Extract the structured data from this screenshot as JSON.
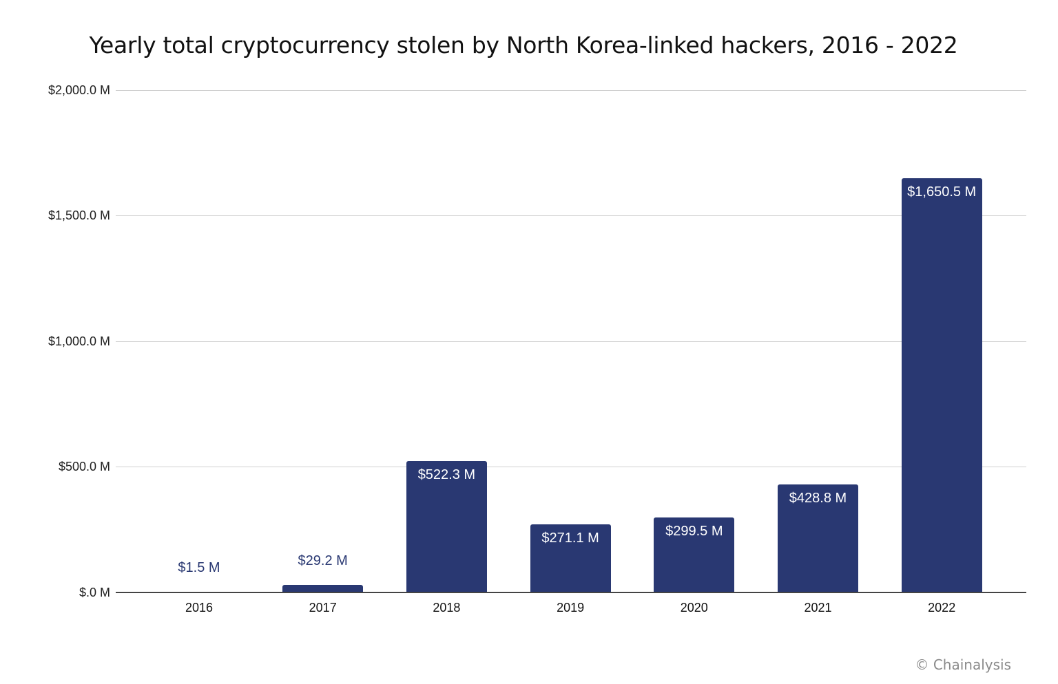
{
  "title": "Yearly total cryptocurrency stolen by North Korea-linked hackers, 2016 - 2022",
  "credit": "© Chainalysis",
  "colors": {
    "bar": "#293872",
    "grid": "#cfcfcf",
    "axis": "#444444"
  },
  "y_ticks": [
    "$2,000.0 M",
    "$1,500.0 M",
    "$1,000.0 M",
    "$500.0 M",
    "$.0 M"
  ],
  "bars": [
    {
      "year": "2016",
      "label": "$1.5 M"
    },
    {
      "year": "2017",
      "label": "$29.2 M"
    },
    {
      "year": "2018",
      "label": "$522.3 M"
    },
    {
      "year": "2019",
      "label": "$271.1 M"
    },
    {
      "year": "2020",
      "label": "$299.5 M"
    },
    {
      "year": "2021",
      "label": "$428.8 M"
    },
    {
      "year": "2022",
      "label": "$1,650.5 M"
    }
  ],
  "chart_data": {
    "type": "bar",
    "title": "Yearly total cryptocurrency stolen by North Korea-linked hackers, 2016 - 2022",
    "categories": [
      "2016",
      "2017",
      "2018",
      "2019",
      "2020",
      "2021",
      "2022"
    ],
    "values": [
      1.5,
      29.2,
      522.3,
      271.1,
      299.5,
      428.8,
      1650.5
    ],
    "data_labels": [
      "$1.5 M",
      "$29.2 M",
      "$522.3 M",
      "$271.1 M",
      "$299.5 M",
      "$428.8 M",
      "$1,650.5 M"
    ],
    "xlabel": "",
    "ylabel": "",
    "unit": "USD millions",
    "ylim": [
      0,
      2000
    ],
    "yticks": [
      0,
      500,
      1000,
      1500,
      2000
    ],
    "ytick_labels": [
      "$.0 M",
      "$500.0 M",
      "$1,000.0 M",
      "$1,500.0 M",
      "$2,000.0 M"
    ],
    "grid": true,
    "legend": null,
    "annotation": "© Chainalysis"
  }
}
